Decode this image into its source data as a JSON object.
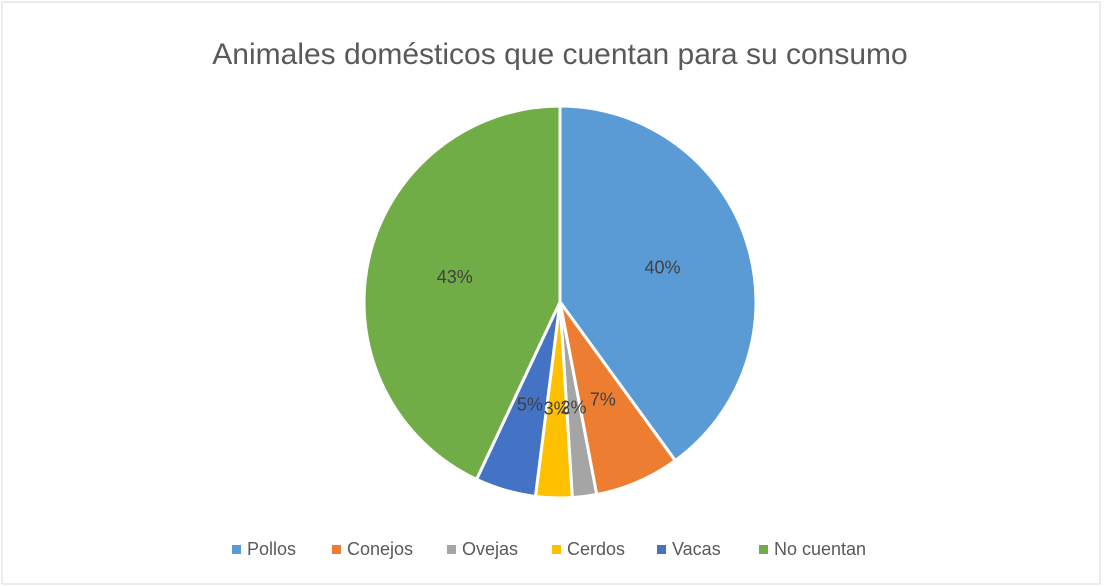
{
  "chart_data": {
    "type": "pie",
    "title": "Animales domésticos que cuentan para su consumo",
    "categories": [
      "Pollos",
      "Conejos",
      "Ovejas",
      "Cerdos",
      "Vacas",
      "No cuentan"
    ],
    "values": [
      40,
      7,
      2,
      3,
      5,
      43
    ],
    "value_labels": [
      "40%",
      "7%",
      "2%",
      "3%",
      "5%",
      "43%"
    ],
    "colors": [
      "#5b9bd5",
      "#ed7d31",
      "#a5a5a5",
      "#ffc000",
      "#4472c4",
      "#70ad47"
    ],
    "legend": "bottom"
  }
}
